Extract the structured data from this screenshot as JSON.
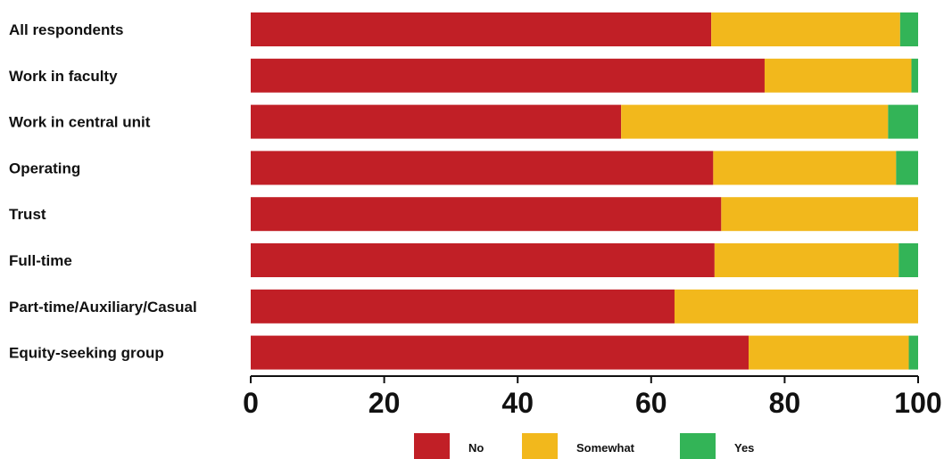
{
  "chart_data": {
    "type": "bar",
    "orientation": "horizontal",
    "stacked": true,
    "title": "",
    "xlabel": "",
    "ylabel": "",
    "xlim": [
      0,
      100
    ],
    "xticks": [
      0,
      20,
      40,
      60,
      80,
      100
    ],
    "grid": false,
    "legend_position": "bottom-center",
    "categories": [
      "All respondents",
      "Work in faculty",
      "Work in central unit",
      "Operating",
      "Trust",
      "Full-time",
      "Part-time/Auxiliary/Casual",
      "Equity-seeking group"
    ],
    "series": [
      {
        "name": "No",
        "color": "#c11f26",
        "values": [
          69,
          77,
          55.5,
          69.3,
          70.5,
          69.5,
          63.5,
          74.6
        ]
      },
      {
        "name": "Somewhat",
        "color": "#f2b81c",
        "values": [
          28.3,
          22,
          40,
          27.4,
          29.5,
          27.6,
          36.5,
          24
        ]
      },
      {
        "name": "Yes",
        "color": "#33b457",
        "values": [
          2.7,
          1,
          4.5,
          3.3,
          0,
          2.9,
          0,
          1.4
        ]
      }
    ]
  }
}
